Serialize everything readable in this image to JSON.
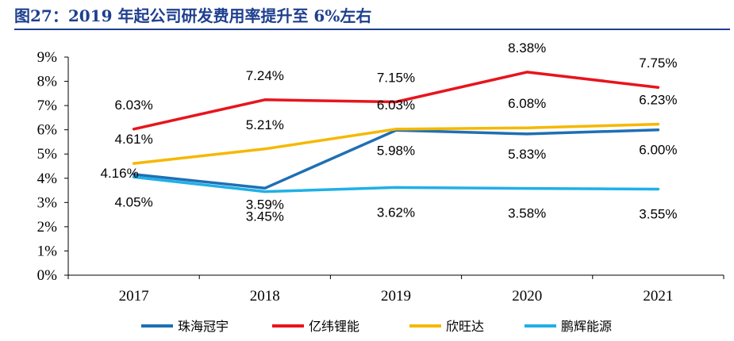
{
  "figure": {
    "title": "图27：2019 年起公司研发费用率提升至 6%左右"
  },
  "chart_data": {
    "type": "line",
    "categories": [
      "2017",
      "2018",
      "2019",
      "2020",
      "2021"
    ],
    "y_ticks": [
      "0%",
      "1%",
      "2%",
      "3%",
      "4%",
      "5%",
      "6%",
      "7%",
      "8%",
      "9%"
    ],
    "ylim": [
      0,
      9
    ],
    "grid": false,
    "legend_position": "bottom",
    "series": [
      {
        "name": "珠海冠宇",
        "color": "#1f6fb4",
        "values": [
          4.16,
          3.59,
          5.98,
          5.83,
          6.0
        ],
        "labels": [
          "4.16%",
          "3.59%",
          "5.98%",
          "5.83%",
          "6.00%"
        ]
      },
      {
        "name": "亿纬锂能",
        "color": "#e8141c",
        "values": [
          6.03,
          7.24,
          7.15,
          8.38,
          7.75
        ],
        "labels": [
          "6.03%",
          "7.24%",
          "7.15%",
          "8.38%",
          "7.75%"
        ]
      },
      {
        "name": "欣旺达",
        "color": "#f5b800",
        "values": [
          4.61,
          5.21,
          6.03,
          6.08,
          6.23
        ],
        "labels": [
          "4.61%",
          "5.21%",
          "6.03%",
          "6.08%",
          "6.23%"
        ]
      },
      {
        "name": "鹏辉能源",
        "color": "#1fb0e8",
        "values": [
          4.05,
          3.45,
          3.62,
          3.58,
          3.55
        ],
        "labels": [
          "4.05%",
          "3.45%",
          "3.62%",
          "3.58%",
          "3.55%"
        ]
      }
    ]
  }
}
